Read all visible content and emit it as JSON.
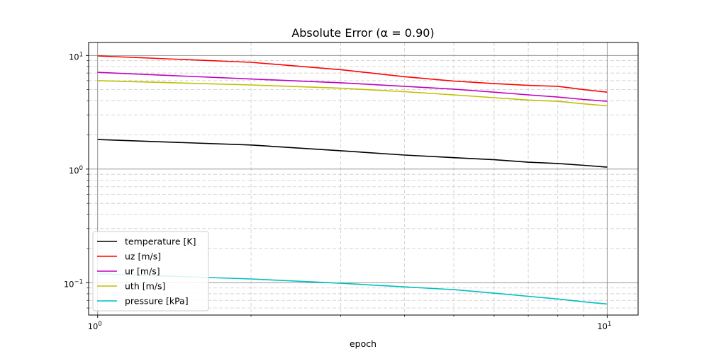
{
  "chart_data": {
    "type": "line",
    "title": "Absolute Error (α = 0.90)",
    "xlabel": "epoch",
    "ylabel": "",
    "xscale": "log",
    "yscale": "log",
    "xlim": [
      0.96,
      11.5
    ],
    "ylim": [
      0.052,
      13
    ],
    "grid": true,
    "legend_position": "lower-left",
    "x_ticks": [
      {
        "value": 1,
        "base": "10",
        "exp": "0"
      },
      {
        "value": 10,
        "base": "10",
        "exp": "1"
      }
    ],
    "y_ticks": [
      {
        "value": 0.1,
        "base": "10",
        "exp": "−1"
      },
      {
        "value": 1,
        "base": "10",
        "exp": "0"
      },
      {
        "value": 10,
        "base": "10",
        "exp": "1"
      }
    ],
    "x": [
      1,
      2,
      3,
      4,
      5,
      6,
      7,
      8,
      9,
      10
    ],
    "series": [
      {
        "name": "temperature [K]",
        "color": "#000000",
        "values": [
          1.82,
          1.63,
          1.45,
          1.33,
          1.26,
          1.21,
          1.15,
          1.12,
          1.08,
          1.04
        ]
      },
      {
        "name": "uz [m/s]",
        "color": "#ff0000",
        "values": [
          9.9,
          8.7,
          7.5,
          6.5,
          5.95,
          5.65,
          5.45,
          5.35,
          5.0,
          4.75
        ]
      },
      {
        "name": "ur [m/s]",
        "color": "#c000c0",
        "values": [
          7.1,
          6.2,
          5.75,
          5.35,
          5.05,
          4.75,
          4.5,
          4.3,
          4.1,
          3.95
        ]
      },
      {
        "name": "uth [m/s]",
        "color": "#bfbf00",
        "values": [
          6.0,
          5.5,
          5.15,
          4.8,
          4.5,
          4.25,
          4.05,
          3.95,
          3.75,
          3.6
        ]
      },
      {
        "name": "pressure [kPa]",
        "color": "#00bfbf",
        "values": [
          0.12,
          0.108,
          0.099,
          0.092,
          0.087,
          0.081,
          0.076,
          0.072,
          0.068,
          0.065
        ]
      }
    ]
  }
}
